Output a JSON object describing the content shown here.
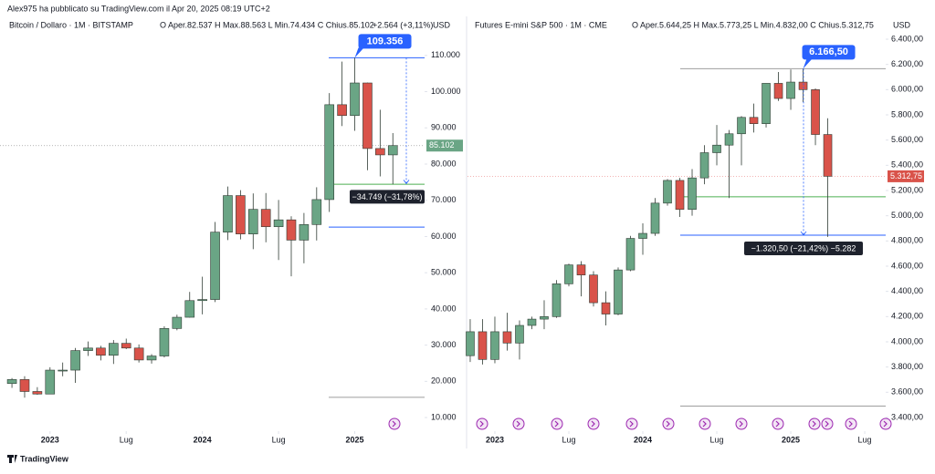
{
  "header": "Alex975 ha pubblicato su TradingView.com il Apr 20, 2025 08:19 UTC+2",
  "footer": "TradingView",
  "chart_data": [
    {
      "type": "candlestick",
      "title": "Bitcoin / Dollaro · 1M · BITSTAMP",
      "quote": "O Aper.82.537  H Max.88.563  L Min.74.434  C Chius.85.102",
      "change": "+2.564 (+3,11%)",
      "currency": "USD",
      "up_color": "#6aa585",
      "down_color": "#d9534a",
      "open": [
        19400,
        20500,
        17200,
        16500,
        23100,
        23100,
        28500,
        29200,
        27200,
        30500,
        29200,
        25900,
        27000,
        34600,
        37700,
        42300,
        42600,
        61200,
        71300,
        60700,
        67500,
        62700,
        64600,
        59000,
        63300,
        70200,
        96400,
        93400,
        102400,
        84300,
        82537
      ],
      "high": [
        20900,
        21400,
        18400,
        23900,
        25200,
        29200,
        31000,
        29800,
        31400,
        31800,
        30200,
        27500,
        35200,
        38400,
        44700,
        48900,
        64000,
        73800,
        72800,
        71900,
        72000,
        70100,
        65600,
        66500,
        73600,
        99600,
        108300,
        109356,
        102500,
        95000,
        88563
      ],
      "low": [
        18200,
        15500,
        16300,
        16500,
        21400,
        19600,
        27000,
        25800,
        24800,
        28900,
        25200,
        24900,
        26600,
        34100,
        37600,
        38500,
        41900,
        59000,
        59200,
        56500,
        58400,
        53500,
        49000,
        52600,
        58900,
        66800,
        90500,
        89200,
        78300,
        76600,
        74434
      ],
      "close": [
        20500,
        17200,
        16500,
        23100,
        23100,
        28500,
        29200,
        27200,
        30500,
        29200,
        25900,
        27000,
        34600,
        37700,
        42300,
        42600,
        61200,
        71300,
        60700,
        67500,
        62700,
        64600,
        59000,
        63300,
        70200,
        96400,
        93400,
        102400,
        84300,
        82537,
        85102
      ],
      "xlim": [
        -0.94,
        32.5
      ],
      "xticks": [
        {
          "value": 3,
          "label": "2023"
        },
        {
          "value": 9,
          "label": "Lug"
        },
        {
          "value": 15,
          "label": "2024"
        },
        {
          "value": 21,
          "label": "Lug"
        },
        {
          "value": 27,
          "label": "2025"
        }
      ],
      "ylim": [
        7000,
        116500
      ],
      "yticks": [
        {
          "value": 10000,
          "label": "10.000"
        },
        {
          "value": 20000,
          "label": "20.000"
        },
        {
          "value": 30000,
          "label": "30.000"
        },
        {
          "value": 40000,
          "label": "40.000"
        },
        {
          "value": 50000,
          "label": "50.000"
        },
        {
          "value": 60000,
          "label": "60.000"
        },
        {
          "value": 70000,
          "label": "70.000"
        },
        {
          "value": 80000,
          "label": "80.000"
        },
        {
          "value": 90000,
          "label": "90.000"
        },
        {
          "value": 100000,
          "label": "100.000"
        },
        {
          "value": 110000,
          "label": "110.000"
        }
      ],
      "levels": [
        {
          "value": 109356,
          "color": "#2962ff"
        },
        {
          "value": 85102,
          "color": "#9e9e9e"
        },
        {
          "value": 74434,
          "color": "#4caf50"
        },
        {
          "value": 62600,
          "color": "#2962ff"
        },
        {
          "value": 15600,
          "color": "#9e9e9e"
        }
      ],
      "high_marker": {
        "value": 109356,
        "label": "109.356"
      },
      "price_label": {
        "value": 85102,
        "label": "85.102"
      },
      "measure": {
        "from": 109356,
        "to": 74607,
        "label": "−34.749 (−31,78%)"
      }
    },
    {
      "type": "candlestick",
      "title": "Futures E-mini S&P 500 · 1M · CME",
      "quote": "O Aper.5.644,25  H Max.5.773,25  L Min.4.832,00  C Chius.5.312,75",
      "currency": "USD",
      "up_color": "#6aa585",
      "down_color": "#d9534a",
      "open": [
        3890,
        4080,
        3860,
        4080,
        3990,
        4130,
        4180,
        4200,
        4460,
        4610,
        4530,
        4310,
        4220,
        4570,
        4820,
        4860,
        5100,
        5280,
        5050,
        5300,
        5500,
        5560,
        5650,
        5780,
        5730,
        6050,
        5930,
        6060,
        6000,
        5644.25
      ],
      "high": [
        4180,
        4180,
        4200,
        4230,
        4170,
        4200,
        4330,
        4490,
        4620,
        4640,
        4560,
        4400,
        4590,
        4840,
        4940,
        5140,
        5290,
        5300,
        5370,
        5560,
        5720,
        5680,
        5790,
        5890,
        6050,
        6140,
        6160,
        6166.5,
        6010,
        5773.25
      ],
      "low": [
        3840,
        3820,
        3830,
        3930,
        3860,
        4100,
        4100,
        4190,
        4440,
        4360,
        4280,
        4130,
        4210,
        4560,
        4690,
        4840,
        5080,
        4990,
        5000,
        5250,
        5400,
        5140,
        5400,
        5660,
        5700,
        5910,
        5840,
        5900,
        5560,
        4832
      ],
      "close": [
        4080,
        3860,
        4080,
        3990,
        4130,
        4180,
        4200,
        4460,
        4610,
        4530,
        4310,
        4220,
        4570,
        4820,
        4860,
        5100,
        5280,
        5050,
        5300,
        5500,
        5560,
        5650,
        5780,
        5730,
        6050,
        5930,
        6060,
        6000,
        5644.25,
        5312.75
      ],
      "xlim": [
        -0.22,
        33.7
      ],
      "xticks": [
        {
          "value": 2,
          "label": "2023"
        },
        {
          "value": 8,
          "label": "Lug"
        },
        {
          "value": 14,
          "label": "2024"
        },
        {
          "value": 20,
          "label": "Lug"
        },
        {
          "value": 26,
          "label": "2025"
        },
        {
          "value": 32,
          "label": "Lug"
        }
      ],
      "ylim": [
        3313,
        6458
      ],
      "yticks": [
        {
          "value": 3400,
          "label": "3.400,00"
        },
        {
          "value": 3600,
          "label": "3.600,00"
        },
        {
          "value": 3800,
          "label": "3.800,00"
        },
        {
          "value": 4000,
          "label": "4.000,00"
        },
        {
          "value": 4200,
          "label": "4.200,00"
        },
        {
          "value": 4400,
          "label": "4.400,00"
        },
        {
          "value": 4600,
          "label": "4.600,00"
        },
        {
          "value": 4800,
          "label": "4.800,00"
        },
        {
          "value": 5000,
          "label": "5.000,00"
        },
        {
          "value": 5200,
          "label": "5.200,00"
        },
        {
          "value": 5400,
          "label": "5.400,00"
        },
        {
          "value": 5600,
          "label": "5.600,00"
        },
        {
          "value": 5800,
          "label": "5.800,00"
        },
        {
          "value": 6000,
          "label": "6.000,00"
        },
        {
          "value": 6200,
          "label": "6.200,00"
        },
        {
          "value": 6400,
          "label": "6.400,00"
        }
      ],
      "levels": [
        {
          "value": 6166.5,
          "color": "#9e9e9e"
        },
        {
          "value": 5312.75,
          "color": "#ef9a9a"
        },
        {
          "value": 5150,
          "color": "#4caf50"
        },
        {
          "value": 4846,
          "color": "#2962ff"
        },
        {
          "value": 3490,
          "color": "#9e9e9e"
        }
      ],
      "high_marker": {
        "value": 6166.5,
        "label": "6.166,50"
      },
      "price_label": {
        "value": 5312.75,
        "label": "5.312,75"
      },
      "measure": {
        "from": 6166.5,
        "to": 4846,
        "label": "−1.320,50 (−21,42%) −5.282"
      }
    }
  ]
}
